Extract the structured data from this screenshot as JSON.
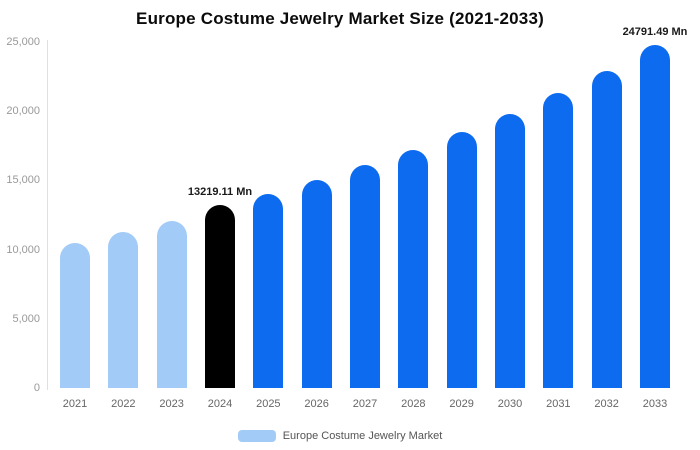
{
  "chart_data": {
    "type": "bar",
    "title": "Europe Costume Jewelry Market Size (2021-2033)",
    "categories": [
      "2021",
      "2022",
      "2023",
      "2024",
      "2025",
      "2026",
      "2027",
      "2028",
      "2029",
      "2030",
      "2031",
      "2032",
      "2033"
    ],
    "values": [
      10500,
      11300,
      12100,
      13219.11,
      14000,
      15000,
      16100,
      17200,
      18500,
      19800,
      21300,
      22900,
      24791.49
    ],
    "unit": "Mn",
    "xlabel": "",
    "ylabel": "",
    "ylim": [
      0,
      25000
    ],
    "y_ticks": [
      "0",
      "5,000",
      "10,000",
      "15,000",
      "20,000",
      "25,000"
    ],
    "grid": false,
    "legend": [
      "Europe Costume Jewelry Market"
    ],
    "legend_position": "bottom",
    "colors": {
      "past": "#a3cbf7",
      "highlight": "#000000",
      "forecast": "#0d6bf0"
    },
    "bar_roles": [
      "past",
      "past",
      "past",
      "highlight",
      "forecast",
      "forecast",
      "forecast",
      "forecast",
      "forecast",
      "forecast",
      "forecast",
      "forecast",
      "forecast"
    ],
    "annotations": [
      {
        "category": "2024",
        "text": "13219.11 Mn"
      },
      {
        "category": "2033",
        "text": "24791.49 Mn"
      }
    ]
  }
}
